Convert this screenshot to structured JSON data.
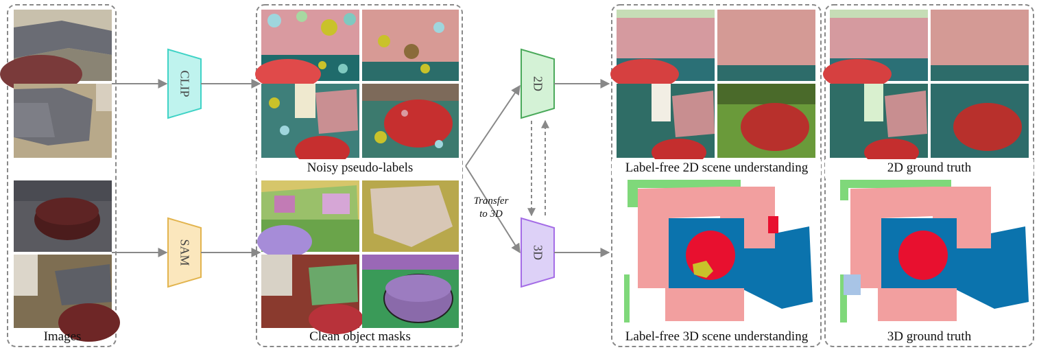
{
  "panels": {
    "images": {
      "caption": "Images"
    },
    "noisy": {
      "caption": "Noisy pseudo-labels"
    },
    "clean": {
      "caption": "Clean object masks"
    },
    "pred2d": {
      "caption": "Label-free 2D scene understanding"
    },
    "pred3d": {
      "caption": "Label-free 3D scene understanding"
    },
    "gt2d": {
      "caption": "2D ground truth"
    },
    "gt3d": {
      "caption": "3D ground truth"
    }
  },
  "encoders": [
    {
      "label": "CLIP",
      "fill": "#bff3ee",
      "stroke": "#3fd3c6"
    },
    {
      "label": "SAM",
      "fill": "#fbe7bd",
      "stroke": "#e2b44e"
    },
    {
      "label": "2D",
      "fill": "#d4f2d6",
      "stroke": "#4aa95a"
    },
    {
      "label": "3D",
      "fill": "#ddd1f7",
      "stroke": "#a46ce6"
    }
  ],
  "transfer": {
    "line1": "Transfer",
    "line2": "to 3D"
  },
  "colors": {
    "sofa": "#f29f9f",
    "floor": "#0b73ad",
    "table": "#e8102f",
    "wall": "#7fd87a",
    "noise": "#c9c22a",
    "border": "#888888",
    "arrow": "#888888"
  }
}
